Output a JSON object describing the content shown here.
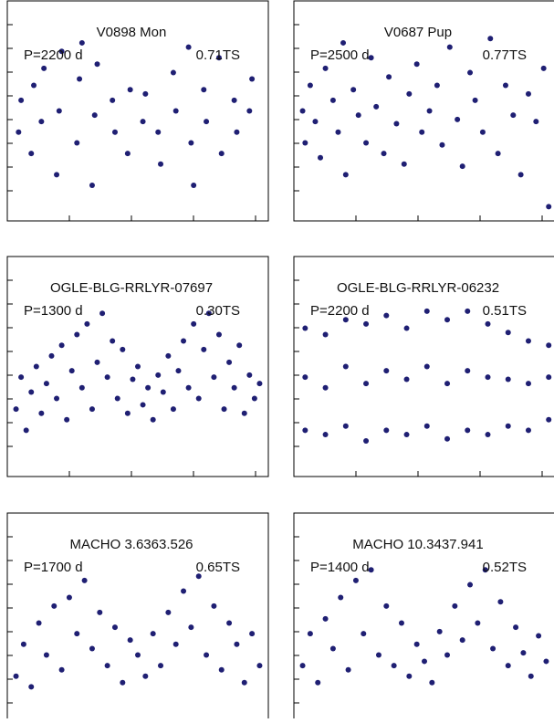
{
  "chart_data": [
    {
      "type": "scatter",
      "title": "V0898 Mon",
      "annotations": [
        "P=2200 d",
        "0.71TS"
      ],
      "color": "#1f1f73",
      "xlim": [
        0,
        100
      ],
      "ylim": [
        0,
        100
      ],
      "x": [
        3,
        4,
        8,
        9,
        12,
        13,
        18,
        19,
        20,
        26,
        27,
        28,
        32,
        33,
        34,
        40,
        41,
        46,
        47,
        52,
        53,
        58,
        59,
        64,
        65,
        70,
        71,
        72,
        76,
        77,
        82,
        83,
        88,
        89,
        94,
        95
      ],
      "y": [
        40,
        55,
        30,
        62,
        45,
        70,
        20,
        50,
        78,
        35,
        65,
        82,
        15,
        48,
        72,
        55,
        40,
        30,
        60,
        45,
        58,
        40,
        25,
        68,
        50,
        80,
        35,
        15,
        60,
        45,
        75,
        30,
        55,
        40,
        50,
        65
      ]
    },
    {
      "type": "scatter",
      "title": "V0687 Pup",
      "annotations": [
        "P=2500 d",
        "0.77TS"
      ],
      "color": "#1f1f73",
      "xlim": [
        0,
        100
      ],
      "ylim": [
        0,
        100
      ],
      "x": [
        2,
        3,
        5,
        7,
        9,
        11,
        14,
        16,
        18,
        19,
        22,
        24,
        27,
        29,
        31,
        34,
        36,
        39,
        42,
        44,
        47,
        49,
        52,
        55,
        57,
        60,
        63,
        65,
        68,
        70,
        73,
        76,
        79,
        82,
        85,
        88,
        91,
        94,
        97,
        99
      ],
      "y": [
        50,
        35,
        62,
        45,
        28,
        70,
        55,
        40,
        82,
        20,
        60,
        48,
        35,
        75,
        52,
        30,
        66,
        44,
        25,
        58,
        72,
        40,
        50,
        62,
        34,
        80,
        46,
        24,
        68,
        55,
        40,
        84,
        30,
        62,
        48,
        20,
        58,
        45,
        70,
        5
      ]
    },
    {
      "type": "scatter",
      "title": "OGLE-BLG-RRLYR-07697",
      "annotations": [
        "P=1300 d",
        "0.30TS"
      ],
      "color": "#1f1f73",
      "xlim": [
        0,
        100
      ],
      "ylim": [
        0,
        100
      ],
      "x": [
        2,
        4,
        6,
        8,
        10,
        12,
        14,
        16,
        18,
        20,
        22,
        24,
        26,
        28,
        30,
        32,
        34,
        36,
        38,
        40,
        42,
        44,
        46,
        48,
        50,
        52,
        54,
        56,
        58,
        60,
        62,
        64,
        66,
        68,
        70,
        72,
        74,
        76,
        78,
        80,
        82,
        84,
        86,
        88,
        90,
        92,
        94,
        96,
        98
      ],
      "y": [
        30,
        45,
        20,
        38,
        50,
        28,
        42,
        55,
        35,
        60,
        25,
        48,
        65,
        40,
        70,
        30,
        52,
        75,
        45,
        62,
        35,
        58,
        28,
        44,
        50,
        32,
        40,
        25,
        46,
        38,
        55,
        30,
        48,
        62,
        40,
        70,
        35,
        58,
        75,
        45,
        65,
        30,
        52,
        40,
        60,
        28,
        46,
        35,
        42
      ]
    },
    {
      "type": "scatter",
      "title": "OGLE-BLG-RRLYR-06232",
      "annotations": [
        "P=2200 d",
        "0.51TS"
      ],
      "color": "#1f1f73",
      "xlim": [
        0,
        100
      ],
      "ylim": [
        0,
        100
      ],
      "x": [
        3,
        3,
        3,
        11,
        11,
        11,
        19,
        19,
        19,
        27,
        27,
        27,
        35,
        35,
        35,
        43,
        43,
        43,
        51,
        51,
        51,
        59,
        59,
        59,
        67,
        67,
        67,
        75,
        75,
        75,
        83,
        83,
        83,
        91,
        91,
        91,
        99,
        99,
        99
      ],
      "y": [
        20,
        45,
        68,
        18,
        40,
        65,
        22,
        50,
        72,
        15,
        42,
        70,
        20,
        48,
        74,
        18,
        44,
        68,
        22,
        50,
        76,
        16,
        42,
        72,
        20,
        48,
        76,
        18,
        45,
        70,
        22,
        44,
        66,
        20,
        42,
        62,
        25,
        45,
        60
      ]
    },
    {
      "type": "scatter",
      "title": "MACHO 3.6363.526",
      "annotations": [
        "P=1700 d",
        "0.65TS"
      ],
      "color": "#1f1f73",
      "xlim": [
        0,
        100
      ],
      "ylim": [
        0,
        100
      ],
      "x": [
        2,
        5,
        8,
        11,
        14,
        17,
        20,
        23,
        26,
        29,
        32,
        35,
        38,
        41,
        44,
        47,
        50,
        53,
        56,
        59,
        62,
        65,
        68,
        71,
        74,
        77,
        80,
        83,
        86,
        89,
        92,
        95,
        98
      ],
      "y": [
        25,
        40,
        20,
        50,
        35,
        58,
        28,
        62,
        45,
        70,
        38,
        55,
        30,
        48,
        22,
        42,
        35,
        25,
        45,
        30,
        55,
        40,
        65,
        48,
        72,
        35,
        58,
        28,
        50,
        40,
        22,
        45,
        30
      ]
    },
    {
      "type": "scatter",
      "title": "MACHO 10.3437.941",
      "annotations": [
        "P=1400 d",
        "0.52TS"
      ],
      "color": "#1f1f73",
      "xlim": [
        0,
        100
      ],
      "ylim": [
        0,
        100
      ],
      "x": [
        2,
        5,
        8,
        11,
        14,
        17,
        20,
        23,
        26,
        29,
        32,
        35,
        38,
        41,
        44,
        47,
        50,
        53,
        56,
        59,
        62,
        65,
        68,
        71,
        74,
        77,
        80,
        83,
        86,
        89,
        92,
        95,
        98
      ],
      "y": [
        30,
        45,
        22,
        52,
        38,
        62,
        28,
        70,
        45,
        75,
        35,
        58,
        30,
        50,
        25,
        40,
        32,
        22,
        46,
        35,
        58,
        42,
        68,
        50,
        75,
        38,
        60,
        30,
        48,
        36,
        25,
        44,
        32
      ]
    }
  ]
}
